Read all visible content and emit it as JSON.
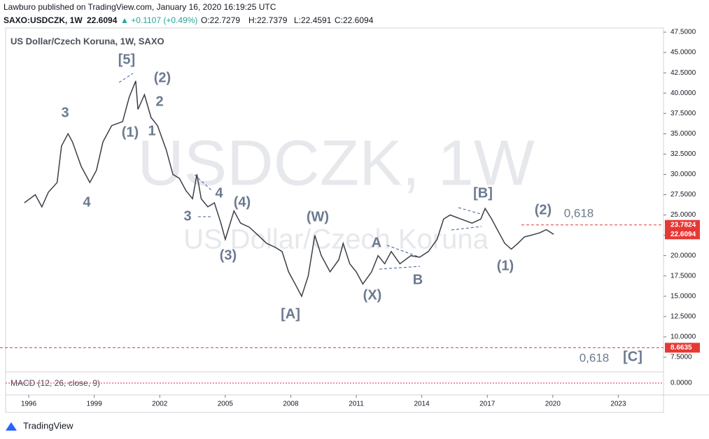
{
  "header": {
    "publisher": "Lawburo published on TradingView.com, January 16, 2020 16:19:25 UTC",
    "symbol": "SAXO:USDCZK, 1W",
    "price": "22.6094",
    "change": "▲ +0.1107 (+0.49%)",
    "open": "O:22.7279",
    "high": "H:22.7379",
    "low": "L:22.4591",
    "close": "C:22.6094"
  },
  "chart_data": {
    "type": "line",
    "title": "US Dollar/Czech Koruna, 1W, SAXO",
    "watermark": [
      "USDCZK, 1W",
      "US Dollar/Czech Koruna"
    ],
    "x": [
      1995.8,
      1996.3,
      1996.6,
      1996.9,
      1997.3,
      1997.5,
      1997.8,
      1998.0,
      1998.4,
      1998.8,
      1999.1,
      1999.4,
      1999.8,
      2000.3,
      2000.6,
      2000.9,
      2001.0,
      2001.3,
      2001.6,
      2001.9,
      2002.3,
      2002.6,
      2002.9,
      2003.2,
      2003.5,
      2003.7,
      2003.9,
      2004.2,
      2004.5,
      2004.8,
      2005.0,
      2005.4,
      2005.7,
      2006.1,
      2006.5,
      2006.9,
      2007.3,
      2007.6,
      2007.9,
      2008.2,
      2008.5,
      2008.8,
      2009.1,
      2009.4,
      2009.8,
      2010.2,
      2010.4,
      2010.7,
      2011.0,
      2011.3,
      2011.7,
      2012.0,
      2012.3,
      2012.6,
      2013.0,
      2013.5,
      2013.9,
      2014.3,
      2014.7,
      2015.0,
      2015.3,
      2015.8,
      2016.3,
      2016.7,
      2016.9,
      2017.2,
      2017.5,
      2017.8,
      2018.1,
      2018.4,
      2018.7,
      2019.0,
      2019.4,
      2019.7,
      2020.04
    ],
    "series": [
      {
        "name": "USDCZK",
        "color": "#3a3f47",
        "values": [
          26.5,
          27.5,
          26,
          27.8,
          29,
          33.5,
          35,
          34,
          31,
          29,
          30.5,
          34,
          36,
          36.5,
          39.5,
          41.5,
          38,
          39.8,
          37,
          36,
          33,
          30,
          29.5,
          28,
          27,
          30,
          27,
          26,
          26.5,
          24,
          22,
          25.5,
          24,
          23.5,
          22.5,
          21.5,
          21,
          20.5,
          18,
          16.5,
          15,
          17.5,
          22.5,
          20,
          18,
          19.5,
          21.5,
          19,
          18,
          16.5,
          18,
          20,
          19,
          20.5,
          19,
          20,
          19.8,
          20.5,
          22,
          24.5,
          25,
          24.5,
          24,
          24.5,
          25.8,
          24.5,
          23,
          21.5,
          20.8,
          21.5,
          22.3,
          22.5,
          22.8,
          23.2,
          22.6094
        ]
      }
    ],
    "xlim": [
      1994.94,
      2025.07
    ],
    "xticks": [
      1996,
      1999,
      2002,
      2005,
      2008,
      2011,
      2014,
      2017,
      2020,
      2023
    ],
    "ylim": [
      5.86,
      48.02
    ],
    "yticks": [
      {
        "value": 7.5,
        "label": "7.5000"
      },
      {
        "value": 10,
        "label": "10.0000"
      },
      {
        "value": 12.5,
        "label": "12.5000"
      },
      {
        "value": 15,
        "label": "15.0000"
      },
      {
        "value": 17.5,
        "label": "17.5000"
      },
      {
        "value": 20,
        "label": "20.0000"
      },
      {
        "value": 22.5,
        "label": "22.5000"
      },
      {
        "value": 25,
        "label": "25.0000"
      },
      {
        "value": 27.5,
        "label": "27.5000"
      },
      {
        "value": 30,
        "label": "30.0000"
      },
      {
        "value": 32.5,
        "label": "32.5000"
      },
      {
        "value": 35,
        "label": "35.0000"
      },
      {
        "value": 37.5,
        "label": "37.5000"
      },
      {
        "value": 40,
        "label": "40.0000"
      },
      {
        "value": 42.5,
        "label": "42.5000"
      },
      {
        "value": 45,
        "label": "45.0000"
      },
      {
        "value": 47.5,
        "label": "47.5000"
      }
    ],
    "hlines": [
      {
        "value": 23.7824,
        "label": "23.7824"
      },
      {
        "value": 8.6635,
        "label": "8.6635"
      }
    ],
    "last_price": {
      "value": 22.6094,
      "label": "22.6094"
    },
    "annotations": [
      "[5]",
      "(2)",
      "2",
      "1",
      "(1)",
      "3",
      "4",
      "3",
      "4",
      "(4)",
      "(3)",
      "(W)",
      "[A]",
      "(X)",
      "A",
      "B",
      "[B]",
      "(2)",
      "0,618",
      "(1)",
      "0,618",
      "[C]"
    ],
    "macd": {
      "label": "MACD (12, 26, close, 9)",
      "ticks": [
        {
          "value": 0,
          "label": "0.0000"
        }
      ]
    }
  },
  "footer": "TradingView"
}
